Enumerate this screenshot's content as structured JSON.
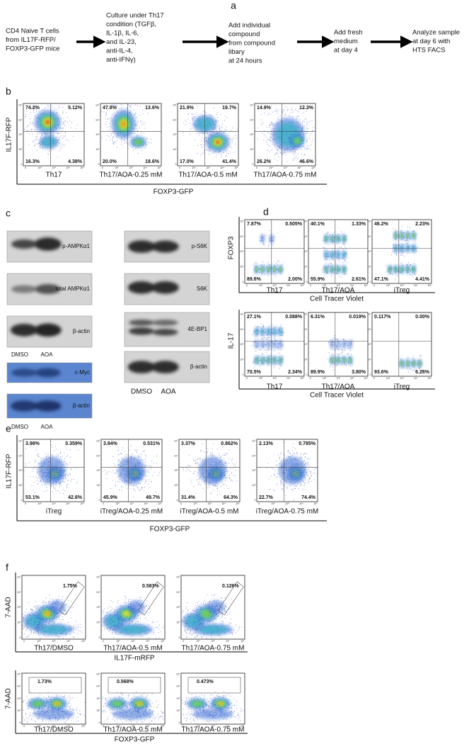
{
  "flow_ticks": [
    "0",
    "10²",
    "10³",
    "10⁴",
    "10⁵"
  ],
  "panel_a": {
    "label": "a",
    "steps": [
      [
        "CD4 Naive T cells",
        "from IL17F-RFP/",
        "FOXP3-GFP mice"
      ],
      [
        "Culture under Th17",
        "condition (TGFβ,",
        " IL-1β, IL-6,",
        "and IL-23,",
        "anti-IL-4,",
        "anti-IFNγ)"
      ],
      [
        "Add individual",
        "compound",
        "from compound",
        "libary",
        "at 24 hours"
      ],
      [
        "Add fresh",
        "medium",
        "at day 4"
      ],
      [
        "Analyze sample",
        "at day 6 with",
        "HTS FACS"
      ]
    ]
  },
  "panel_b": {
    "label": "b",
    "y_label": "IL17F-RFP",
    "x_label": "FOXP3-GFP",
    "plots": [
      {
        "label": "Th17",
        "q": [
          "74.2%",
          "5.12%",
          "16.3%",
          "4.38%"
        ]
      },
      {
        "label": "Th17/AOA-0.25 mM",
        "q": [
          "47.8%",
          "13.6%",
          "20.0%",
          "18.6%"
        ]
      },
      {
        "label": "Th17/AOA-0.5 mM",
        "q": [
          "21.9%",
          "19.7%",
          "17.0%",
          "41.4%"
        ]
      },
      {
        "label": "Th17/AOA-0.75 mM",
        "q": [
          "14.9%",
          "12.3%",
          "26.2%",
          "46.6%"
        ]
      }
    ]
  },
  "panel_c": {
    "label": "c",
    "lanes": [
      "DMSO",
      "AOA"
    ],
    "left": [
      "p-AMPKα1",
      "total AMPKα1",
      "β-actin"
    ],
    "left_lower": [
      "c-Myc",
      "β-actin"
    ],
    "right": [
      "p-S6K",
      "S6K",
      "4E-BP1",
      "β-actin"
    ]
  },
  "panel_d": {
    "label": "d",
    "x_label": "Cell Tracer Violet",
    "top": {
      "y_label": "FOXP3",
      "plots": [
        {
          "label": "Th17",
          "q": [
            "7.87%",
            "0.505%",
            "89.6%",
            "2.00%"
          ]
        },
        {
          "label": "Th17/AOA",
          "q": [
            "40.1%",
            "1.33%",
            "55.9%",
            "2.61%"
          ]
        },
        {
          "label": "iTreg",
          "q": [
            "46.2%",
            "2.23%",
            "47.1%",
            "4.41%"
          ]
        }
      ]
    },
    "bottom": {
      "y_label": "IL-17",
      "plots": [
        {
          "label": "Th17",
          "q": [
            "27.1%",
            "0.088%",
            "70.5%",
            "2.34%"
          ]
        },
        {
          "label": "Th17/AOA",
          "q": [
            "6.31%",
            "0.019%",
            "89.9%",
            "3.80%"
          ]
        },
        {
          "label": "iTreg",
          "q": [
            "0.117%",
            "0.00%",
            "93.6%",
            "6.26%"
          ]
        }
      ]
    }
  },
  "panel_e": {
    "label": "e",
    "y_label": "IL17F-RFP",
    "x_label": "FOXP3-GFP",
    "plots": [
      {
        "label": "iTreg",
        "q": [
          "3.98%",
          "0.359%",
          "53.1%",
          "42.6%"
        ]
      },
      {
        "label": "iTreg/AOA-0.25 mM",
        "q": [
          "3.84%",
          "0.531%",
          "45.9%",
          "49.7%"
        ]
      },
      {
        "label": "iTreg/AOA-0.5 mM",
        "q": [
          "3.37%",
          "0.862%",
          "31.4%",
          "64.3%"
        ]
      },
      {
        "label": "iTreg/AOA-0.75 mM",
        "q": [
          "2.13%",
          "0.785%",
          "22.7%",
          "74.4%"
        ]
      }
    ]
  },
  "panel_f": {
    "label": "f",
    "y_label": "7-AAD",
    "top": {
      "x_label": "IL17F-mRFP",
      "plots": [
        {
          "label": "Th17/DMSO",
          "gate": "1.75%"
        },
        {
          "label": "Th17/AOA-0.5 mM",
          "gate": "0.583%"
        },
        {
          "label": "Th17/AOA-0.75 mM",
          "gate": "0.126%"
        }
      ]
    },
    "bottom": {
      "x_label": "FOXP3-GFP",
      "plots": [
        {
          "label": "Th17/DMSO",
          "gate": "1.73%"
        },
        {
          "label": "Th17/AOA-0.5 mM",
          "gate": "0.568%"
        },
        {
          "label": "Th17/AOA-0.75 mM",
          "gate": "0.473%"
        }
      ]
    }
  }
}
